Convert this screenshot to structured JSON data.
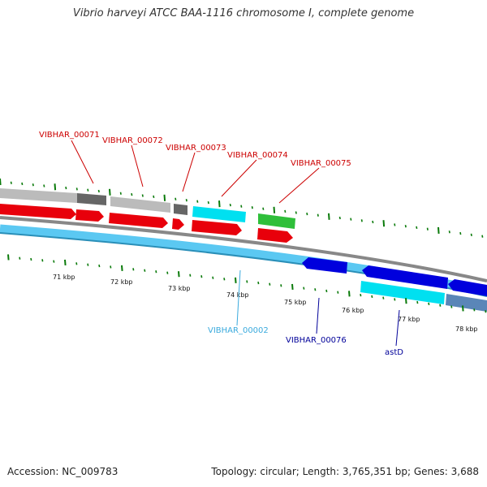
{
  "title": "Vibrio harveyi ATCC BAA-1116 chromosome I, complete genome",
  "accession": "Accession: NC_009783",
  "summary": "Topology: circular; Length: 3,765,351 bp; Genes: 3,688",
  "colors": {
    "cds": "#e8000b",
    "trna": "#00e0f0",
    "rrna": "#2fbf3a",
    "gene_light": "#bbbbbb",
    "gene_dark": "#666666",
    "gene_blue": "#0000dd",
    "gene_steel": "#5a86b8",
    "backbone": "#5bc8f2",
    "tick": "#0a7a0a",
    "label_red": "#cc0000",
    "label_navy": "#000099",
    "label_cyan": "#3aaadd"
  },
  "scale_labels": [
    "71 kbp",
    "72 kbp",
    "73 kbp",
    "74 kbp",
    "75 kbp",
    "76 kbp",
    "77 kbp",
    "78 kbp"
  ],
  "feature_labels_top": [
    {
      "text": "VIBHAR_00071"
    },
    {
      "text": "VIBHAR_00072"
    },
    {
      "text": "VIBHAR_00073"
    },
    {
      "text": "VIBHAR_00074"
    },
    {
      "text": "VIBHAR_00075"
    }
  ],
  "feature_labels_bottom": [
    {
      "text": "VIBHAR_00002",
      "color_key": "label_cyan"
    },
    {
      "text": "VIBHAR_00076",
      "color_key": "label_navy"
    },
    {
      "text": "astD",
      "color_key": "label_navy"
    }
  ]
}
